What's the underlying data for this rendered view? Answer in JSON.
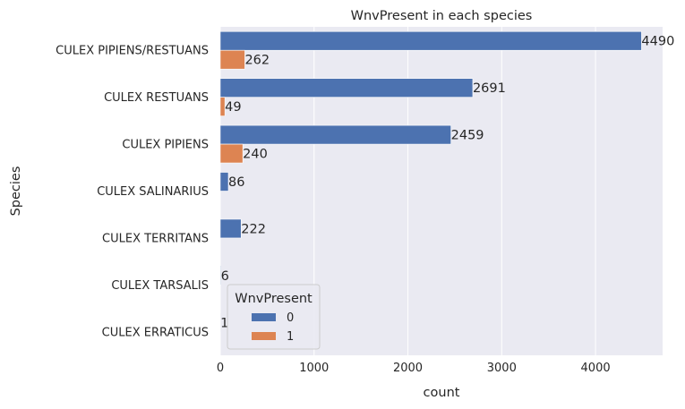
{
  "chart_data": {
    "type": "bar",
    "orientation": "horizontal",
    "title": "WnvPresent in each species",
    "xlabel": "count",
    "ylabel": "Species",
    "xlim": [
      0,
      4715
    ],
    "xticks": [
      0,
      1000,
      2000,
      3000,
      4000
    ],
    "categories": [
      "CULEX PIPIENS/RESTUANS",
      "CULEX RESTUANS",
      "CULEX PIPIENS",
      "CULEX SALINARIUS",
      "CULEX TERRITANS",
      "CULEX TARSALIS",
      "CULEX ERRATICUS"
    ],
    "series": [
      {
        "name": "0",
        "color": "#4c72b0",
        "values": [
          4490,
          2691,
          2459,
          86,
          222,
          6,
          1
        ]
      },
      {
        "name": "1",
        "color": "#dd8452",
        "values": [
          262,
          49,
          240,
          null,
          null,
          null,
          null
        ]
      }
    ],
    "legend": {
      "title": "WnvPresent",
      "placement": "lower-left"
    },
    "grid": true,
    "background_color": "#eaeaf2",
    "grid_color": "#ffffff"
  }
}
